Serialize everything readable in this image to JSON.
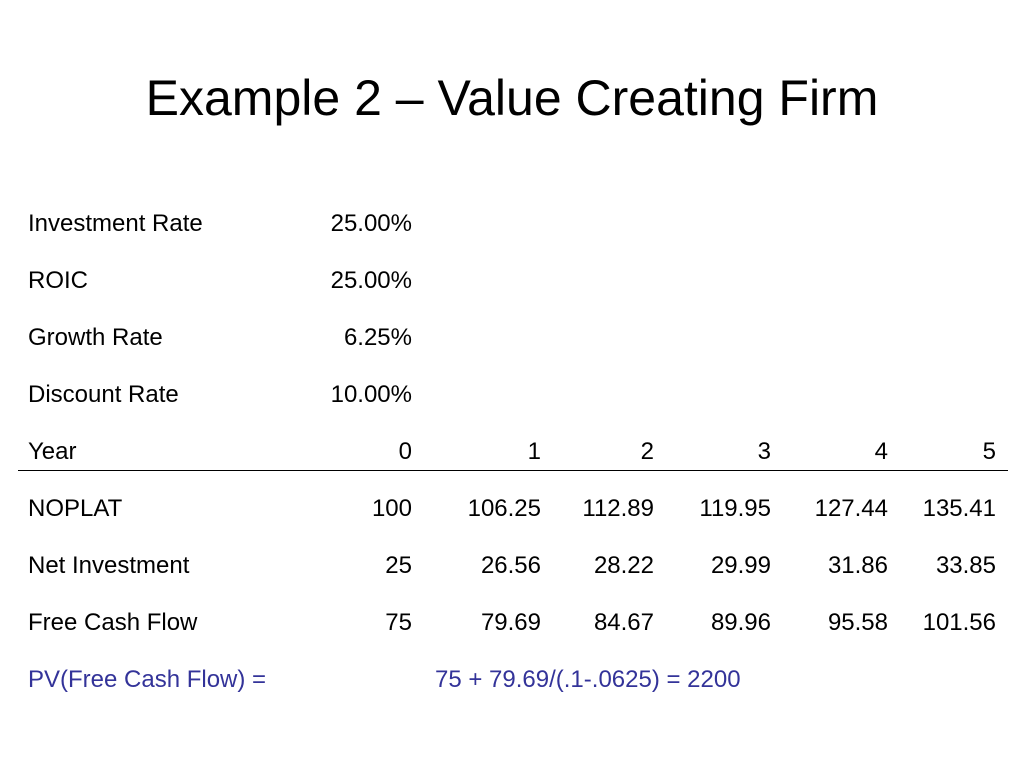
{
  "title": "Example 2 – Value Creating Firm",
  "colors": {
    "text": "#000000",
    "accent": "#333399",
    "background": "#ffffff"
  },
  "assumptions": [
    {
      "label": "Investment Rate",
      "value": "25.00%"
    },
    {
      "label": "ROIC",
      "value": "25.00%"
    },
    {
      "label": "Growth Rate",
      "value": "6.25%"
    },
    {
      "label": "Discount Rate",
      "value": "10.00%"
    }
  ],
  "year_header": {
    "label": "Year",
    "years": [
      "0",
      "1",
      "2",
      "3",
      "4",
      "5"
    ]
  },
  "data_rows": [
    {
      "label": "NOPLAT",
      "values": [
        "100",
        "106.25",
        "112.89",
        "119.95",
        "127.44",
        "135.41"
      ]
    },
    {
      "label": "Net Investment",
      "values": [
        "25",
        "26.56",
        "28.22",
        "29.99",
        "31.86",
        "33.85"
      ]
    },
    {
      "label": "Free Cash Flow",
      "values": [
        "75",
        "79.69",
        "84.67",
        "89.96",
        "95.58",
        "101.56"
      ]
    }
  ],
  "pv": {
    "label": "PV(Free Cash Flow) =",
    "formula": "75 + 79.69/(.1-.0625) = 2200"
  }
}
